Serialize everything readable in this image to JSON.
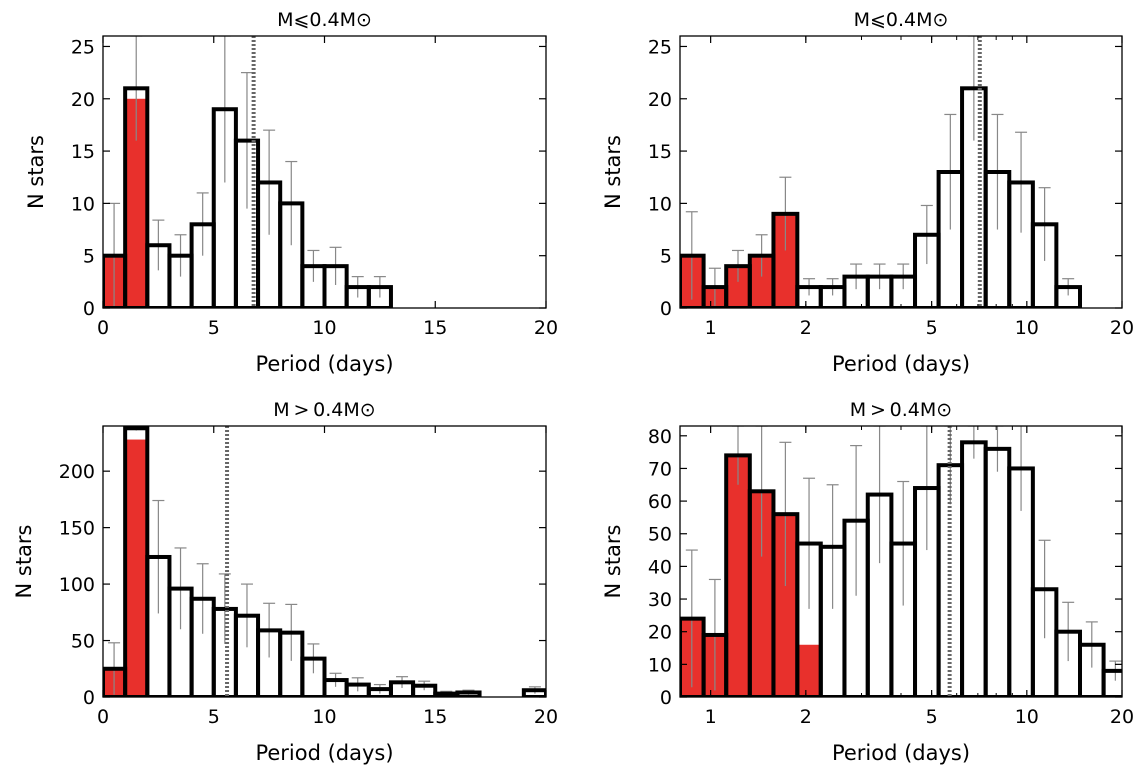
{
  "chart_data": [
    {
      "type": "bar",
      "title": "M⩽0.4M⊙",
      "xlabel": "Period (days)",
      "ylabel": "N stars",
      "xscale": "linear",
      "xlim": [
        0,
        20
      ],
      "ylim": [
        0,
        26
      ],
      "xticks": [
        0,
        5,
        10,
        15,
        20
      ],
      "xtick_labels": [
        "0",
        "5",
        "10",
        "15",
        "20"
      ],
      "yticks": [
        0,
        5,
        10,
        15,
        20,
        25
      ],
      "ytick_labels": [
        "0",
        "5",
        "10",
        "15",
        "20",
        "25"
      ],
      "bin_edges": [
        0,
        1,
        2,
        3,
        4,
        5,
        6,
        7,
        8,
        9,
        10,
        11,
        12,
        13,
        14,
        15,
        16,
        17,
        18,
        19,
        20
      ],
      "values": [
        5,
        21,
        6,
        5,
        8,
        19,
        16,
        12,
        10,
        4,
        4,
        2,
        2,
        0,
        0,
        0,
        0,
        0,
        0,
        0
      ],
      "red_values": [
        5,
        20,
        0,
        0,
        0,
        0,
        0,
        0,
        0,
        0,
        0,
        0,
        0,
        0,
        0,
        0,
        0,
        0,
        0,
        0
      ],
      "error_upper": [
        10,
        26,
        8.4,
        7,
        11,
        26,
        22.5,
        17,
        14,
        5.5,
        5.8,
        3,
        3,
        0,
        0,
        0,
        0,
        0,
        0,
        0
      ],
      "vline": 6.8,
      "colors": {
        "red": "#e8302c",
        "edge": "#000000",
        "error": "#888888",
        "vline": "#666666"
      }
    },
    {
      "type": "bar",
      "title": "M⩽0.4M⊙",
      "xlabel": "Period (days)",
      "ylabel": "N stars",
      "xscale": "log",
      "xlim": [
        0.8,
        20
      ],
      "ylim": [
        0,
        26
      ],
      "xticks": [
        1,
        2,
        5,
        10,
        20
      ],
      "xtick_labels": [
        "1",
        "2",
        "5",
        "10",
        "20"
      ],
      "yticks": [
        0,
        5,
        10,
        15,
        20,
        25
      ],
      "ytick_labels": [
        "0",
        "5",
        "10",
        "15",
        "20",
        "25"
      ],
      "bin_edges": [
        0.8,
        0.95,
        1.12,
        1.33,
        1.58,
        1.88,
        2.23,
        2.65,
        3.14,
        3.73,
        4.43,
        5.26,
        6.24,
        7.41,
        8.8,
        10.45,
        12.4,
        14.73,
        17.49,
        20.76
      ],
      "values": [
        5,
        2,
        4,
        5,
        9,
        2,
        2,
        3,
        3,
        3,
        7,
        13,
        21,
        13,
        12,
        8,
        2,
        0,
        0
      ],
      "red_values": [
        5,
        2,
        4,
        5,
        9,
        0,
        0,
        0,
        0,
        0,
        0,
        0,
        0,
        0,
        0,
        0,
        0,
        0,
        0
      ],
      "error_upper": [
        9.2,
        3.8,
        5.5,
        7,
        12.5,
        2.8,
        2.8,
        4.2,
        4.2,
        4.2,
        9.8,
        18.5,
        26,
        18.5,
        16.8,
        11.5,
        2.8,
        0,
        0
      ],
      "vline": 7.1,
      "colors": {
        "red": "#e8302c",
        "edge": "#000000",
        "error": "#888888",
        "vline": "#666666"
      }
    },
    {
      "type": "bar",
      "title": "M > 0.4M⊙",
      "xlabel": "Period (days)",
      "ylabel": "N stars",
      "xscale": "linear",
      "xlim": [
        0,
        20
      ],
      "ylim": [
        0,
        240
      ],
      "xticks": [
        0,
        5,
        10,
        15,
        20
      ],
      "xtick_labels": [
        "0",
        "5",
        "10",
        "15",
        "20"
      ],
      "yticks": [
        0,
        50,
        100,
        150,
        200
      ],
      "ytick_labels": [
        "0",
        "50",
        "100",
        "150",
        "200"
      ],
      "bin_edges": [
        0,
        1,
        2,
        3,
        4,
        5,
        6,
        7,
        8,
        9,
        10,
        11,
        12,
        13,
        14,
        15,
        16,
        17,
        18,
        19,
        20
      ],
      "values": [
        25,
        238,
        124,
        96,
        87,
        78,
        72,
        59,
        57,
        34,
        15,
        11,
        7,
        13,
        10,
        3,
        4,
        0,
        0,
        6
      ],
      "red_values": [
        25,
        228,
        0,
        0,
        0,
        0,
        0,
        0,
        0,
        0,
        0,
        0,
        0,
        0,
        0,
        0,
        0,
        0,
        0,
        0
      ],
      "error_upper": [
        48,
        240,
        174,
        132,
        118,
        109,
        100,
        83,
        82,
        47,
        21,
        17,
        11,
        18,
        14,
        5,
        6,
        0,
        0,
        9
      ],
      "vline": 5.6,
      "colors": {
        "red": "#e8302c",
        "edge": "#000000",
        "error": "#888888",
        "vline": "#666666"
      }
    },
    {
      "type": "bar",
      "title": "M > 0.4M⊙",
      "xlabel": "Period (days)",
      "ylabel": "N stars",
      "xscale": "log",
      "xlim": [
        0.8,
        20
      ],
      "ylim": [
        0,
        83
      ],
      "xticks": [
        1,
        2,
        5,
        10,
        20
      ],
      "xtick_labels": [
        "1",
        "2",
        "5",
        "10",
        "20"
      ],
      "yticks": [
        0,
        10,
        20,
        30,
        40,
        50,
        60,
        70,
        80
      ],
      "ytick_labels": [
        "0",
        "10",
        "20",
        "30",
        "40",
        "50",
        "60",
        "70",
        "80"
      ],
      "bin_edges": [
        0.8,
        0.95,
        1.12,
        1.33,
        1.58,
        1.88,
        2.23,
        2.65,
        3.14,
        3.73,
        4.43,
        5.26,
        6.24,
        7.41,
        8.8,
        10.45,
        12.4,
        14.73,
        17.49,
        20.76
      ],
      "values": [
        24,
        19,
        74,
        63,
        56,
        47,
        46,
        54,
        62,
        47,
        64,
        71,
        78,
        76,
        70,
        33,
        20,
        16,
        8
      ],
      "red_values": [
        24,
        19,
        74,
        63,
        56,
        16,
        0,
        0,
        0,
        0,
        0,
        0,
        0,
        0,
        0,
        0,
        0,
        0,
        0
      ],
      "error_upper": [
        45,
        36,
        83,
        83,
        78,
        67,
        65,
        77,
        83,
        66,
        83,
        83,
        83,
        83,
        83,
        48,
        29,
        23,
        11
      ],
      "vline": 5.7,
      "colors": {
        "red": "#e8302c",
        "edge": "#000000",
        "error": "#888888",
        "vline": "#666666"
      }
    }
  ]
}
